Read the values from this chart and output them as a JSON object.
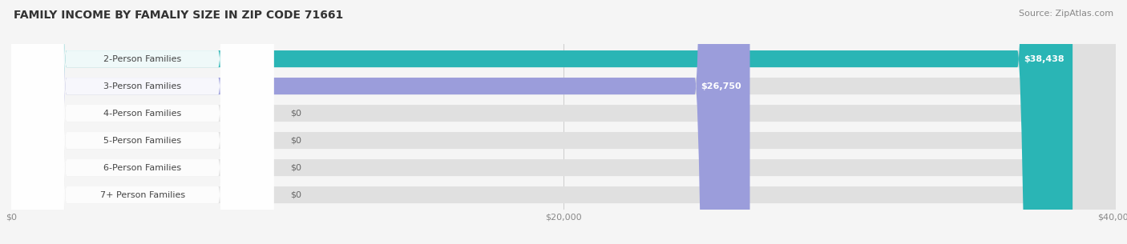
{
  "title": "FAMILY INCOME BY FAMALIY SIZE IN ZIP CODE 71661",
  "source": "Source: ZipAtlas.com",
  "categories": [
    "2-Person Families",
    "3-Person Families",
    "4-Person Families",
    "5-Person Families",
    "6-Person Families",
    "7+ Person Families"
  ],
  "values": [
    38438,
    26750,
    0,
    0,
    0,
    0
  ],
  "bar_colors": [
    "#2ab5b5",
    "#9b9ddb",
    "#f49ab0",
    "#f8c98a",
    "#f09898",
    "#a8c8e8"
  ],
  "value_labels": [
    "$38,438",
    "$26,750",
    "$0",
    "$0",
    "$0",
    "$0"
  ],
  "xlim": [
    0,
    40000
  ],
  "xticklabels": [
    "$0",
    "$20,000",
    "$40,000"
  ],
  "background_color": "#f5f5f5",
  "title_fontsize": 10,
  "source_fontsize": 8,
  "label_fontsize": 8,
  "value_fontsize": 8
}
